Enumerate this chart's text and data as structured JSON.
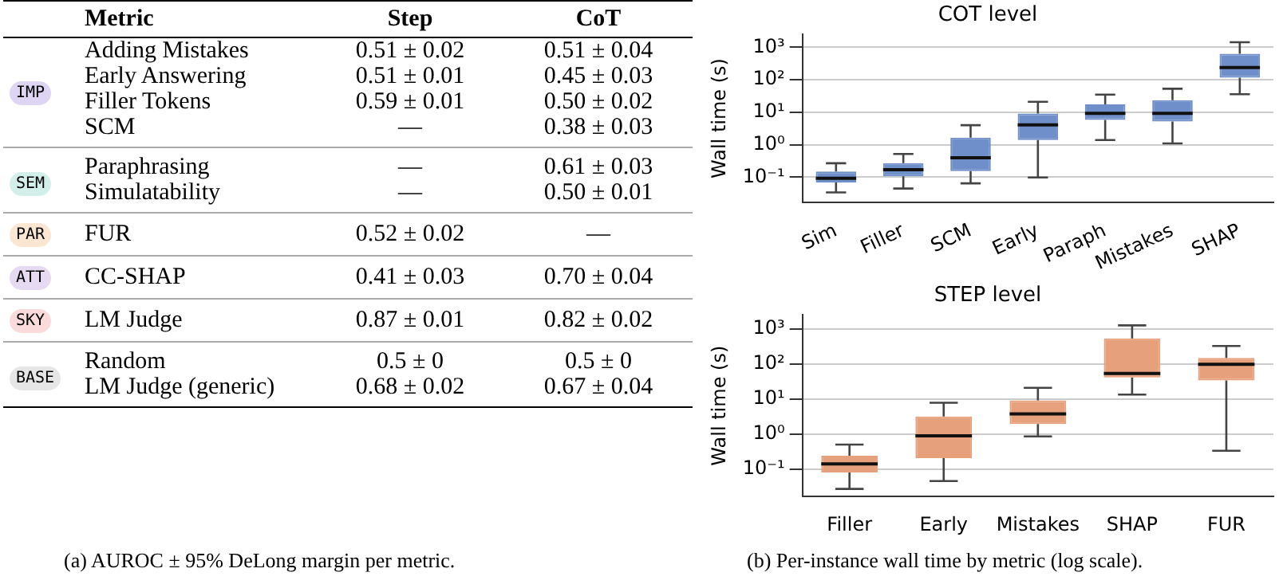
{
  "chart_data": [
    {
      "type": "other",
      "annotations": [
        "(a) AUROC ± 95% DeLong margin per metric."
      ],
      "categories": [
        "Metric",
        "Step",
        "CoT"
      ],
      "y_categories": [
        "IMP",
        null,
        null,
        null,
        "SEM",
        null,
        "PAR",
        "ATT",
        "SKY",
        "BASE",
        null
      ],
      "colors": [
        "#ddd5f3",
        null,
        null,
        null,
        "#d3efe9",
        null,
        "#fbe6d2",
        "#e6d9f2",
        "#fadadb",
        "#e6e6e6",
        null
      ],
      "cell_labels": [
        [
          "Adding Mistakes",
          "0.51 ± 0.02",
          "0.51 ± 0.04"
        ],
        [
          "Early Answering",
          "0.51 ± 0.01",
          "0.45 ± 0.03"
        ],
        [
          "Filler Tokens",
          "0.59 ± 0.01",
          "0.50 ± 0.02"
        ],
        [
          "SCM",
          "—",
          "0.38 ± 0.03"
        ],
        [
          "Paraphrasing",
          "—",
          "0.61 ± 0.03"
        ],
        [
          "Simulatability",
          "—",
          "0.50 ± 0.01"
        ],
        [
          "FUR",
          "0.52 ± 0.02",
          "—"
        ],
        [
          "CC-SHAP",
          "0.41 ± 0.03",
          "0.70 ± 0.04"
        ],
        [
          "LM Judge",
          "0.87 ± 0.01",
          "0.82 ± 0.02"
        ],
        [
          "Random",
          "0.5 ± 0",
          "0.5 ± 0"
        ],
        [
          "LM Judge (generic)",
          "0.68 ± 0.02",
          "0.67 ± 0.04"
        ]
      ]
    },
    {
      "type": "box",
      "title": "COT level",
      "ylabel": "Wall time (s)",
      "categories": [
        "Sim",
        "Filler",
        "SCM",
        "Early",
        "Paraph",
        "Mistakes",
        "SHAP"
      ],
      "color": "#6f8fcb",
      "boxes": [
        {
          "low": 0.034,
          "q1": 0.069,
          "median": 0.093,
          "q3": 0.15,
          "high": 0.27
        },
        {
          "low": 0.045,
          "q1": 0.107,
          "median": 0.17,
          "q3": 0.27,
          "high": 0.52
        },
        {
          "low": 0.065,
          "q1": 0.155,
          "median": 0.4,
          "q3": 1.66,
          "high": 4.0
        },
        {
          "low": 0.098,
          "q1": 1.4,
          "median": 4.1,
          "q3": 9.1,
          "high": 21
        },
        {
          "low": 1.4,
          "q1": 5.8,
          "median": 9.3,
          "q3": 17.5,
          "high": 35
        },
        {
          "low": 1.1,
          "q1": 5.2,
          "median": 9.3,
          "q3": 23.6,
          "high": 53
        },
        {
          "low": 36,
          "q1": 116,
          "median": 240,
          "q3": 630,
          "high": 1440
        }
      ],
      "log": "y",
      "ylim": [
        0.017,
        2500
      ],
      "yticks": [
        {
          "value": 0.1,
          "label": "10⁻¹"
        },
        {
          "value": 1,
          "label": "10⁰"
        },
        {
          "value": 10,
          "label": "10¹"
        },
        {
          "value": 100,
          "label": "10²"
        },
        {
          "value": 1000,
          "label": "10³"
        }
      ],
      "grid": "y"
    },
    {
      "type": "box",
      "title": "STEP level",
      "ylabel": "Wall time (s)",
      "categories": [
        "Filler",
        "Early",
        "Mistakes",
        "SHAP",
        "FUR"
      ],
      "color": "#e6a07c",
      "boxes": [
        {
          "low": 0.028,
          "q1": 0.082,
          "median": 0.144,
          "q3": 0.245,
          "high": 0.51
        },
        {
          "low": 0.047,
          "q1": 0.21,
          "median": 0.91,
          "q3": 3.2,
          "high": 7.9
        },
        {
          "low": 0.87,
          "q1": 1.95,
          "median": 3.8,
          "q3": 9.3,
          "high": 21
        },
        {
          "low": 13.5,
          "q1": 41.5,
          "median": 54,
          "q3": 535,
          "high": 1260
        },
        {
          "low": 0.34,
          "q1": 34,
          "median": 98,
          "q3": 148,
          "high": 325
        }
      ],
      "log": "y",
      "ylim": [
        0.017,
        2500
      ],
      "yticks": [
        {
          "value": 0.1,
          "label": "10⁻¹"
        },
        {
          "value": 1,
          "label": "10⁰"
        },
        {
          "value": 10,
          "label": "10¹"
        },
        {
          "value": 100,
          "label": "10²"
        },
        {
          "value": 1000,
          "label": "10³"
        }
      ],
      "grid": "y",
      "annotations": [
        "(b) Per-instance wall time by metric (log scale)."
      ]
    }
  ]
}
